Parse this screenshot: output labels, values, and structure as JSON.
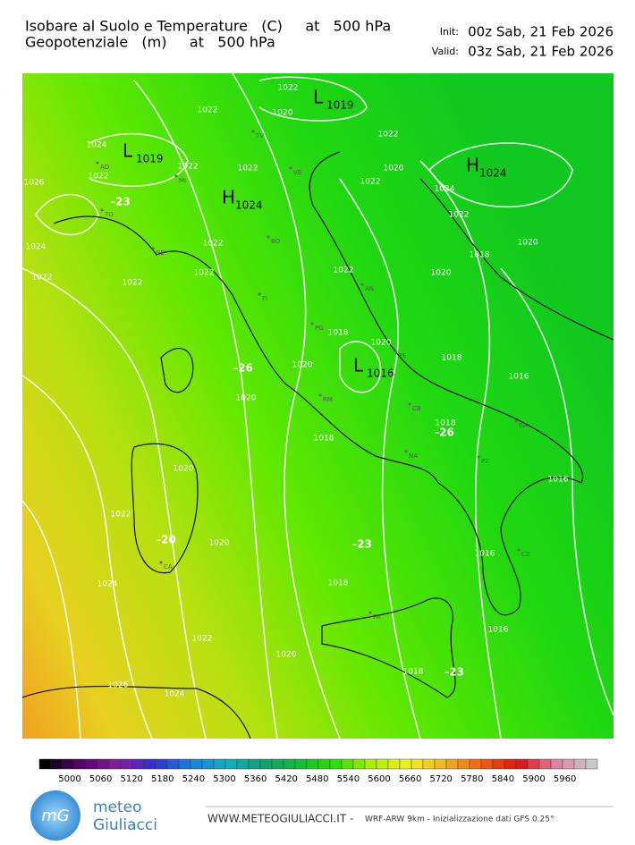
{
  "header": {
    "title_line1": "Isobare al Suolo e Temperature   (C)     at   500 hPa",
    "title_line2": "Geopotenziale   (m)     at   500 hPa",
    "init_label": "Init:",
    "init_value": "00z Sab, 21 Feb 2026",
    "valid_label": "Valid:",
    "valid_value": "03z Sab, 21 Feb 2026"
  },
  "map": {
    "isobar_labels": [
      1022,
      1020,
      1022,
      1024,
      1022,
      1022,
      1026,
      1022,
      1022,
      1020,
      1022,
      1024,
      1022,
      1020,
      1018,
      1024,
      1022,
      1022,
      1022,
      1022,
      1022,
      1020,
      1018,
      1020,
      1018,
      1020,
      1016,
      1020,
      1018,
      1018,
      1016,
      1020,
      1022,
      1020,
      1016,
      1018,
      1024,
      1016,
      1022,
      1020,
      1018,
      1026,
      1024
    ],
    "centers": [
      {
        "letter": "L",
        "value": 1019
      },
      {
        "letter": "L",
        "value": 1019
      },
      {
        "letter": "H",
        "value": 1024
      },
      {
        "letter": "H",
        "value": 1024
      },
      {
        "letter": "L",
        "value": 1016
      }
    ],
    "temperature_labels": [
      -23,
      -26,
      -26,
      -20,
      -23,
      -23
    ],
    "cities": [
      "AO",
      "MI",
      "TO",
      "GE",
      "BO",
      "TV",
      "VE",
      "FI",
      "AN",
      "PG",
      "PE",
      "RM",
      "CB",
      "NA",
      "BA",
      "PZ",
      "CA",
      "CZ",
      "PA"
    ]
  },
  "colorbar": {
    "labels": [
      5000,
      5060,
      5120,
      5180,
      5240,
      5300,
      5360,
      5420,
      5480,
      5540,
      5600,
      5660,
      5720,
      5780,
      5840,
      5900,
      5960
    ],
    "stops": [
      "#000000",
      "#5a0070",
      "#8a1aa0",
      "#3030d0",
      "#1a80e0",
      "#10b0c0",
      "#10a070",
      "#10c030",
      "#30e000",
      "#b0f000",
      "#f0f020",
      "#f0b020",
      "#f06010",
      "#e01010",
      "#e080a0",
      "#c8c8c8"
    ]
  },
  "footer": {
    "logo_mark": "mG",
    "logo_line1": "meteo",
    "logo_line2": "Giuliacci",
    "site": "WWW.METEOGIULIACCI.IT -",
    "model": "WRF-ARW 9km - Inizializzazione dati GFS 0.25°"
  }
}
